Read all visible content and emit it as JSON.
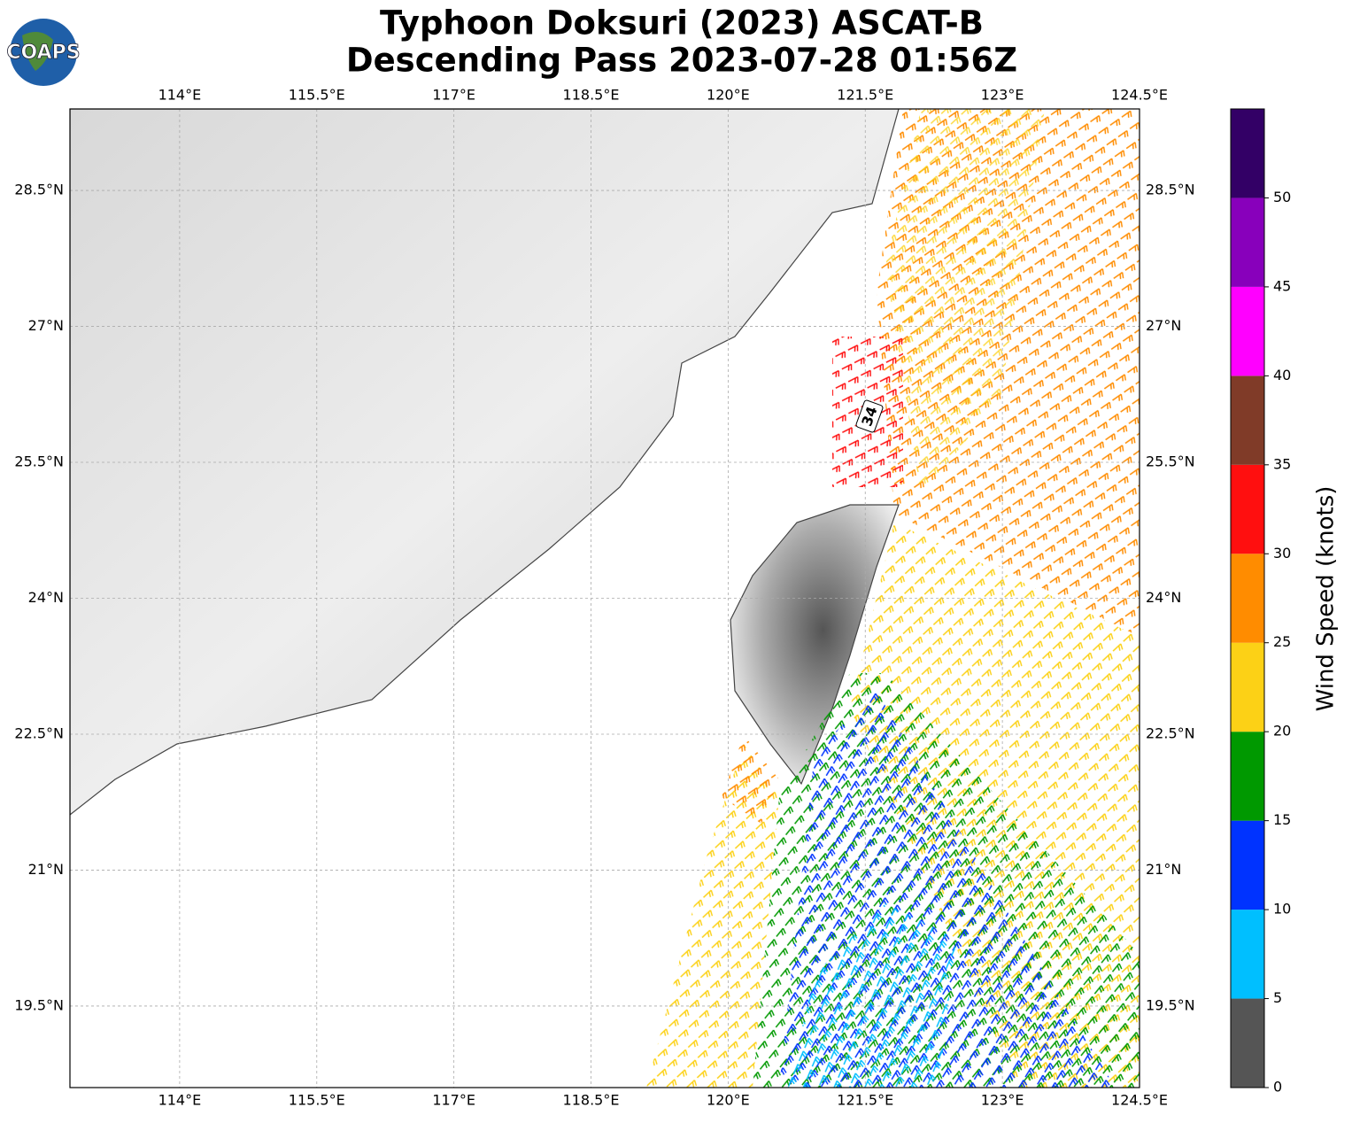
{
  "header": {
    "title_line1": "Typhoon Doksuri (2023) ASCAT-B",
    "title_line2": "Descending Pass 2023-07-28 01:56Z",
    "logo": "COAPS"
  },
  "map": {
    "xlim": [
      112.8,
      124.5
    ],
    "ylim": [
      18.6,
      29.4
    ],
    "xticks": [
      {
        "value": 114,
        "label": "114°E"
      },
      {
        "value": 115.5,
        "label": "115.5°E"
      },
      {
        "value": 117,
        "label": "117°E"
      },
      {
        "value": 118.5,
        "label": "118.5°E"
      },
      {
        "value": 120,
        "label": "120°E"
      },
      {
        "value": 121.5,
        "label": "121.5°E"
      },
      {
        "value": 123,
        "label": "123°E"
      },
      {
        "value": 124.5,
        "label": "124.5°E"
      }
    ],
    "yticks": [
      {
        "value": 19.5,
        "label": "19.5°N"
      },
      {
        "value": 21,
        "label": "21°N"
      },
      {
        "value": 22.5,
        "label": "22.5°N"
      },
      {
        "value": 24,
        "label": "24°N"
      },
      {
        "value": 25.5,
        "label": "25.5°N"
      },
      {
        "value": 27,
        "label": "27°N"
      },
      {
        "value": 28.5,
        "label": "28.5°N"
      }
    ],
    "grid": true,
    "annotation": "34"
  },
  "colorbar": {
    "label": "Wind Speed (knots)",
    "lim": [
      0,
      55
    ],
    "bounds": [
      0,
      5,
      10,
      15,
      20,
      25,
      30,
      35,
      40,
      45,
      50,
      55
    ],
    "colors": [
      "#555555",
      "#00bfff",
      "#0033ff",
      "#009900",
      "#fcd116",
      "#ff8c00",
      "#ff0f0f",
      "#803b28",
      "#ff00ff",
      "#8800bb",
      "#330066"
    ],
    "ticks": [
      0,
      5,
      10,
      15,
      20,
      25,
      30,
      35,
      40,
      45,
      50
    ]
  }
}
